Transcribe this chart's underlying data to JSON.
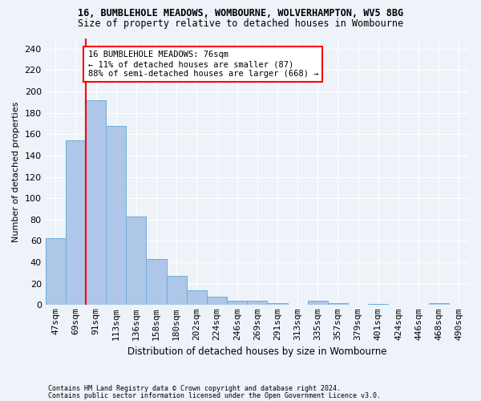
{
  "title_line1": "16, BUMBLEHOLE MEADOWS, WOMBOURNE, WOLVERHAMPTON, WV5 8BG",
  "title_line2": "Size of property relative to detached houses in Wombourne",
  "xlabel": "Distribution of detached houses by size in Wombourne",
  "ylabel": "Number of detached properties",
  "footer_line1": "Contains HM Land Registry data © Crown copyright and database right 2024.",
  "footer_line2": "Contains public sector information licensed under the Open Government Licence v3.0.",
  "categories": [
    "47sqm",
    "69sqm",
    "91sqm",
    "113sqm",
    "136sqm",
    "158sqm",
    "180sqm",
    "202sqm",
    "224sqm",
    "246sqm",
    "269sqm",
    "291sqm",
    "313sqm",
    "335sqm",
    "357sqm",
    "379sqm",
    "401sqm",
    "424sqm",
    "446sqm",
    "468sqm",
    "490sqm"
  ],
  "values": [
    63,
    154,
    192,
    168,
    83,
    43,
    27,
    14,
    8,
    4,
    4,
    2,
    0,
    4,
    2,
    0,
    1,
    0,
    0,
    2,
    0
  ],
  "bar_color": "#aec6e8",
  "bar_edge_color": "#6baed6",
  "ylim": [
    0,
    250
  ],
  "yticks": [
    0,
    20,
    40,
    60,
    80,
    100,
    120,
    140,
    160,
    180,
    200,
    220,
    240
  ],
  "red_line_x": 1.5,
  "annotation_text": "16 BUMBLEHOLE MEADOWS: 76sqm\n← 11% of detached houses are smaller (87)\n88% of semi-detached houses are larger (668) →",
  "annotation_box_color": "white",
  "annotation_box_edge": "red",
  "property_line_color": "red",
  "background_color": "#eef2f9"
}
